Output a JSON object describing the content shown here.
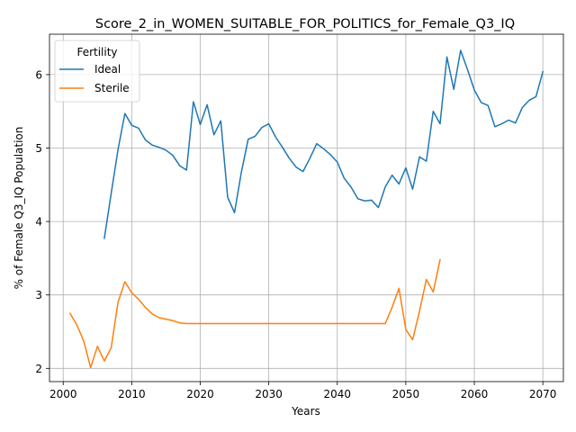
{
  "chart_data": {
    "type": "line",
    "title": "Score_2_in_WOMEN_SUITABLE_FOR_POLITICS_for_Female_Q3_IQ",
    "xlabel": "Years",
    "ylabel": "% of Female Q3_IQ Population",
    "xlim": [
      1998,
      2073
    ],
    "ylim": [
      1.82,
      6.55
    ],
    "xticks": [
      2000,
      2010,
      2020,
      2030,
      2040,
      2050,
      2060,
      2070
    ],
    "yticks": [
      2,
      3,
      4,
      5,
      6
    ],
    "grid": true,
    "legend": {
      "title": "Fertility",
      "placement": "top-left"
    },
    "series": [
      {
        "name": "Ideal",
        "color": "#1f77b4",
        "points": [
          [
            2006,
            3.77
          ],
          [
            2007,
            4.38
          ],
          [
            2008,
            4.98
          ],
          [
            2009,
            5.47
          ],
          [
            2010,
            5.31
          ],
          [
            2011,
            5.27
          ],
          [
            2012,
            5.11
          ],
          [
            2013,
            5.04
          ],
          [
            2014,
            5.01
          ],
          [
            2015,
            4.97
          ],
          [
            2016,
            4.9
          ],
          [
            2017,
            4.76
          ],
          [
            2018,
            4.7
          ],
          [
            2019,
            5.63
          ],
          [
            2020,
            5.32
          ],
          [
            2021,
            5.59
          ],
          [
            2022,
            5.18
          ],
          [
            2023,
            5.37
          ],
          [
            2024,
            4.33
          ],
          [
            2025,
            4.12
          ],
          [
            2026,
            4.67
          ],
          [
            2027,
            5.12
          ],
          [
            2028,
            5.16
          ],
          [
            2029,
            5.28
          ],
          [
            2030,
            5.33
          ],
          [
            2031,
            5.15
          ],
          [
            2032,
            5.01
          ],
          [
            2033,
            4.86
          ],
          [
            2034,
            4.74
          ],
          [
            2035,
            4.68
          ],
          [
            2036,
            4.86
          ],
          [
            2037,
            5.06
          ],
          [
            2038,
            4.99
          ],
          [
            2039,
            4.91
          ],
          [
            2040,
            4.81
          ],
          [
            2041,
            4.59
          ],
          [
            2042,
            4.47
          ],
          [
            2043,
            4.31
          ],
          [
            2044,
            4.28
          ],
          [
            2045,
            4.29
          ],
          [
            2046,
            4.19
          ],
          [
            2047,
            4.47
          ],
          [
            2048,
            4.63
          ],
          [
            2049,
            4.51
          ],
          [
            2050,
            4.73
          ],
          [
            2051,
            4.44
          ],
          [
            2052,
            4.88
          ],
          [
            2053,
            4.82
          ],
          [
            2054,
            5.5
          ],
          [
            2055,
            5.33
          ],
          [
            2056,
            6.24
          ],
          [
            2057,
            5.8
          ],
          [
            2058,
            6.33
          ],
          [
            2059,
            6.07
          ],
          [
            2060,
            5.79
          ],
          [
            2061,
            5.62
          ],
          [
            2062,
            5.58
          ],
          [
            2063,
            5.29
          ],
          [
            2064,
            5.33
          ],
          [
            2065,
            5.38
          ],
          [
            2066,
            5.34
          ],
          [
            2067,
            5.55
          ],
          [
            2068,
            5.65
          ],
          [
            2069,
            5.7
          ],
          [
            2070,
            6.04
          ]
        ]
      },
      {
        "name": "Sterile",
        "color": "#ff7f0e",
        "points": [
          [
            2001,
            2.75
          ],
          [
            2002,
            2.59
          ],
          [
            2003,
            2.37
          ],
          [
            2004,
            2.01
          ],
          [
            2005,
            2.3
          ],
          [
            2006,
            2.1
          ],
          [
            2007,
            2.28
          ],
          [
            2008,
            2.9
          ],
          [
            2009,
            3.18
          ],
          [
            2010,
            3.03
          ],
          [
            2011,
            2.94
          ],
          [
            2012,
            2.83
          ],
          [
            2013,
            2.74
          ],
          [
            2014,
            2.69
          ],
          [
            2015,
            2.67
          ],
          [
            2016,
            2.65
          ],
          [
            2017,
            2.62
          ],
          [
            2018,
            2.61
          ],
          [
            2019,
            2.61
          ],
          [
            2020,
            2.61
          ],
          [
            2030,
            2.61
          ],
          [
            2040,
            2.61
          ],
          [
            2047,
            2.61
          ],
          [
            2048,
            2.83
          ],
          [
            2049,
            3.09
          ],
          [
            2050,
            2.53
          ],
          [
            2051,
            2.39
          ],
          [
            2052,
            2.78
          ],
          [
            2053,
            3.21
          ],
          [
            2054,
            3.04
          ],
          [
            2055,
            3.48
          ]
        ]
      }
    ]
  }
}
